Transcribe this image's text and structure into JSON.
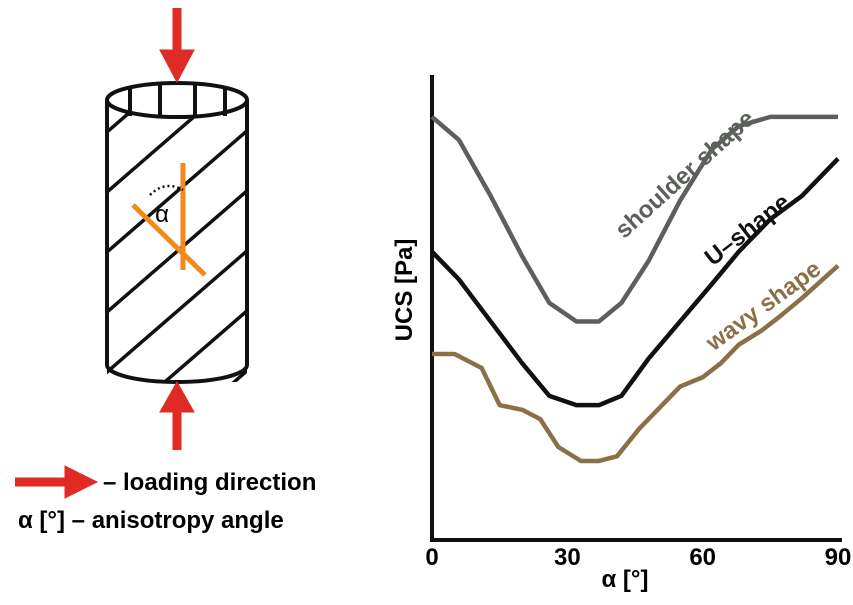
{
  "chart_data": {
    "type": "line",
    "x_label": "α [°]",
    "y_label": "UCS [Pa]",
    "xlim": [
      0,
      90
    ],
    "xticks": [
      0,
      30,
      60,
      90
    ],
    "ylim": [
      0,
      100
    ],
    "grid": false,
    "series": [
      {
        "name": "shoulder shape",
        "color": "#5b605a",
        "x": [
          0,
          6,
          13,
          20,
          26,
          32,
          37,
          42,
          48,
          55,
          62,
          68,
          75,
          90
        ],
        "values": [
          91,
          86,
          74,
          61,
          51,
          47,
          47,
          51,
          60,
          73,
          84,
          89,
          91,
          91
        ]
      },
      {
        "name": "U–shape",
        "color": "#111111",
        "x": [
          0,
          6,
          13,
          20,
          26,
          32,
          37,
          42,
          48,
          55,
          62,
          68,
          75,
          82,
          90
        ],
        "values": [
          62,
          56,
          47,
          38,
          31,
          29,
          29,
          31,
          39,
          47,
          55,
          62,
          69,
          74,
          82
        ]
      },
      {
        "name": "wavy shape",
        "color": "#8b7047",
        "x": [
          0,
          5,
          11,
          15,
          20,
          24,
          28,
          33,
          37,
          41,
          46,
          51,
          55,
          60,
          64,
          68,
          73,
          77,
          82,
          90
        ],
        "values": [
          40,
          40,
          37,
          29,
          28,
          26,
          20,
          17,
          17,
          18,
          24,
          29,
          33,
          35,
          38,
          42,
          45,
          48,
          52,
          59
        ]
      }
    ]
  },
  "diagram": {
    "angle_symbol": "α",
    "legend": [
      "– loading direction",
      "α [°] – anisotropy angle"
    ]
  }
}
